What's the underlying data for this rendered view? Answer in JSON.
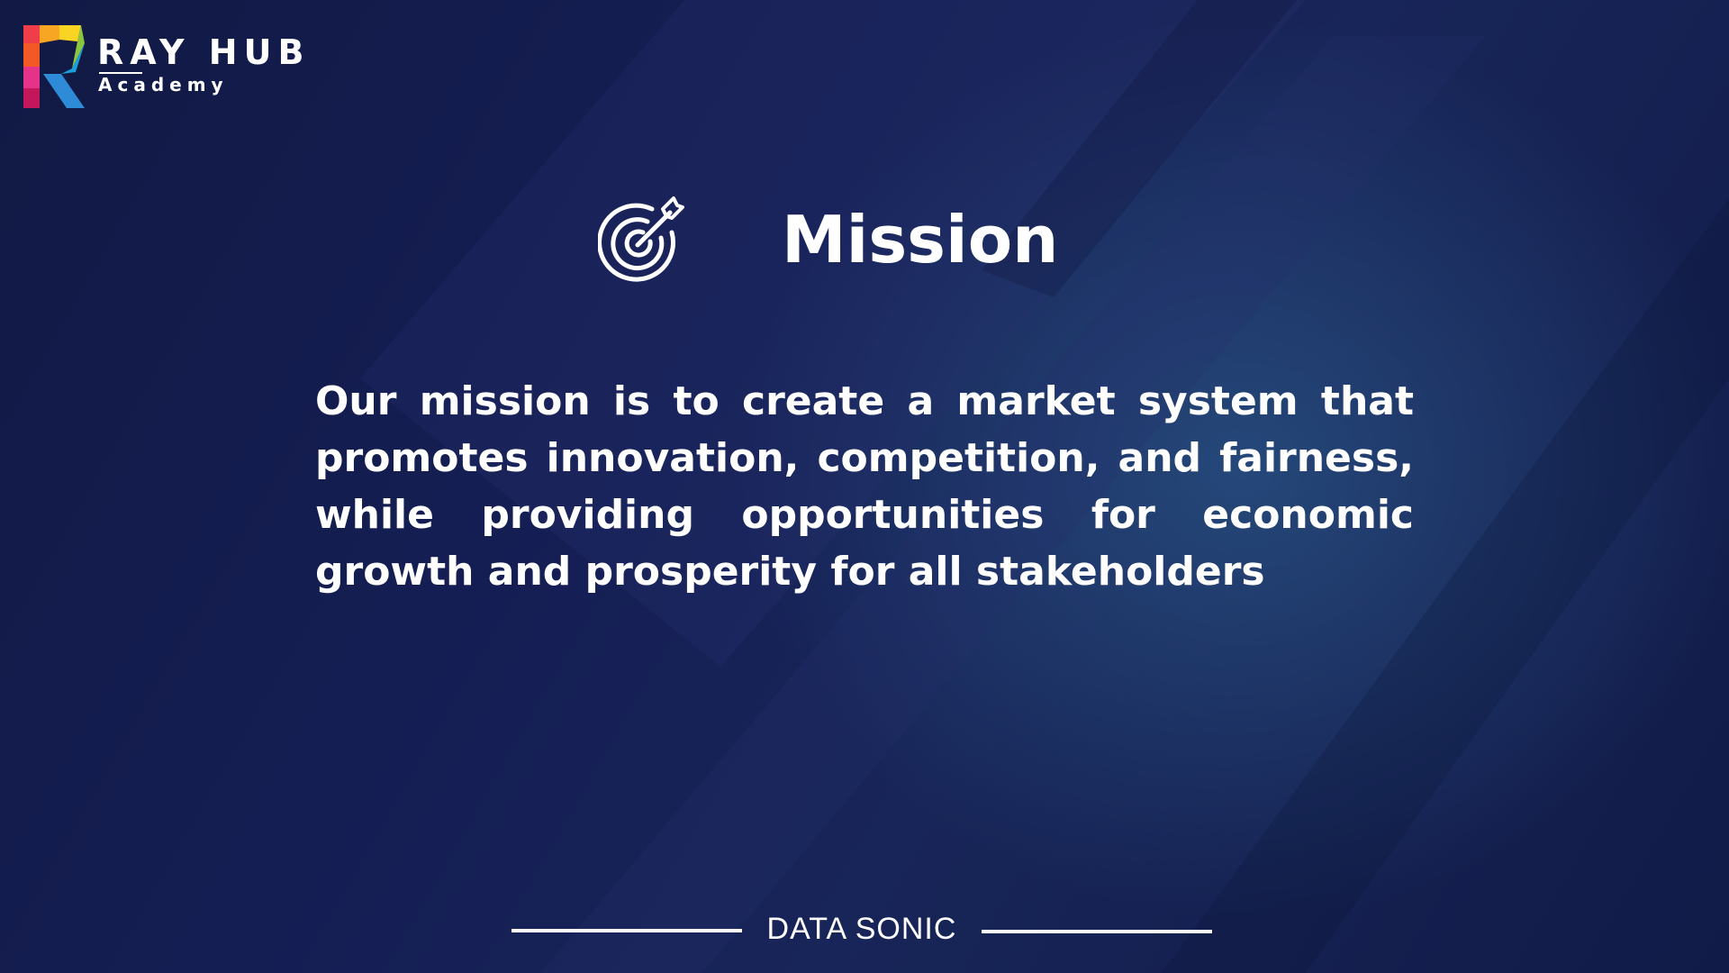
{
  "logo": {
    "brand": "RAY HUB",
    "subtitle": "Academy"
  },
  "heading": {
    "icon": "target-arrow-icon",
    "title": "Mission"
  },
  "content": {
    "paragraph": "Our mission is to create a market system that promotes innovation, competition, and fairness, while providing opportunities for economic growth and prosperity for all stakeholders"
  },
  "footer": {
    "label": "DATA SONIC"
  },
  "colors": {
    "background": "#121a45",
    "accent_glow": "#284e80",
    "text": "#ffffff"
  }
}
